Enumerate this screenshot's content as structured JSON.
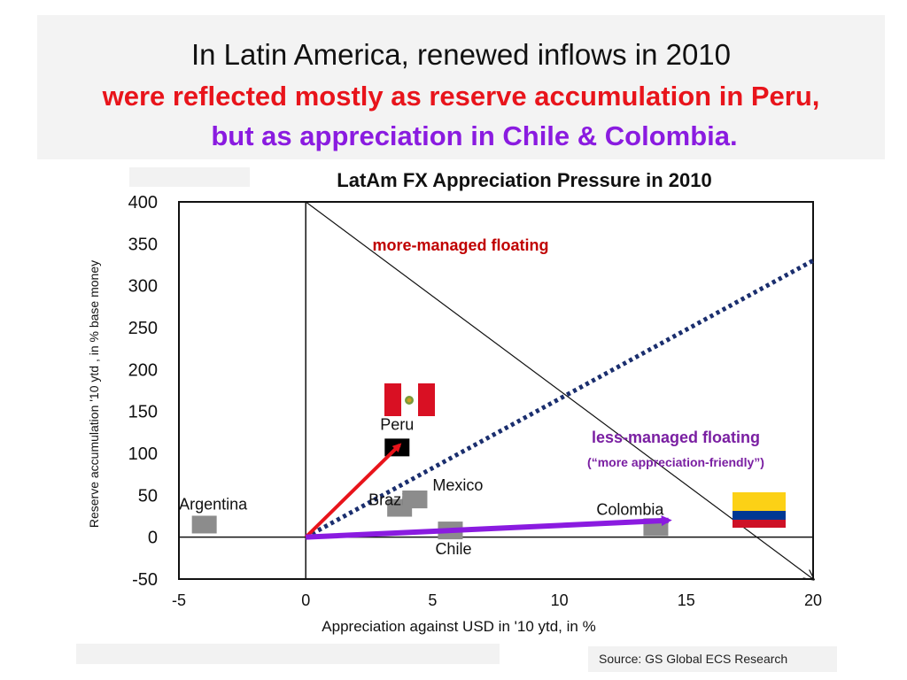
{
  "title": {
    "line1": "In Latin America, renewed inflows in 2010",
    "line2": "were reflected mostly as reserve accumulation in Peru,",
    "line3": "but as appreciation in Chile & Colombia."
  },
  "source": "Source: GS Global ECS Research",
  "colors": {
    "red": "#e8141b",
    "purple": "#8a1be0",
    "navy": "#1a2e6e",
    "marker": "#8c8c8c",
    "dark_red": "#c00000"
  },
  "chart_data": {
    "type": "scatter",
    "title": "LatAm  FX Appreciation  Pressure in 2010",
    "xlabel": "Appreciation against USD in '10 ytd, in %",
    "ylabel": "Reserve accumulation '10 ytd , in % base money",
    "xlim": [
      -5,
      20
    ],
    "ylim": [
      -50,
      400
    ],
    "xticks": [
      -5,
      0,
      5,
      10,
      15,
      20
    ],
    "yticks": [
      -50,
      0,
      50,
      100,
      150,
      200,
      250,
      300,
      350,
      400
    ],
    "x_tick_labels": [
      "-5",
      "0",
      "5",
      "10",
      "15",
      "20"
    ],
    "y_tick_labels": [
      "-50",
      "0",
      "50",
      "100",
      "150",
      "200",
      "250",
      "300",
      "350",
      "400"
    ],
    "points": [
      {
        "label": "Argentina",
        "x": -4.0,
        "y": 15
      },
      {
        "label": "Brazil",
        "x": 3.7,
        "y": 35
      },
      {
        "label": "",
        "x": 4.3,
        "y": 45
      },
      {
        "label": "Mexico",
        "x": 4.3,
        "y": 45
      },
      {
        "label": "Chile",
        "x": 5.7,
        "y": 8
      },
      {
        "label": "Peru",
        "x": 3.6,
        "y": 107
      },
      {
        "label": "Colombia",
        "x": 13.8,
        "y": 12
      }
    ],
    "arrows": [
      {
        "name": "arrow-to-peru",
        "color": "red",
        "from": [
          0,
          0
        ],
        "to": [
          3.7,
          110
        ]
      },
      {
        "name": "arrow-to-colombia",
        "color": "purple",
        "from": [
          0,
          0
        ],
        "to": [
          14.3,
          20
        ]
      }
    ],
    "diagonal_dotted": {
      "from": [
        0,
        0
      ],
      "to": [
        20,
        330
      ]
    },
    "diagonal_line": {
      "from": [
        0,
        400
      ],
      "to": [
        20,
        -50
      ]
    },
    "annotations": {
      "more_managed": "more-managed floating",
      "less_managed": "less-managed floating",
      "less_managed_sub": "(“more appreciation-friendly”)"
    },
    "grid": false
  }
}
